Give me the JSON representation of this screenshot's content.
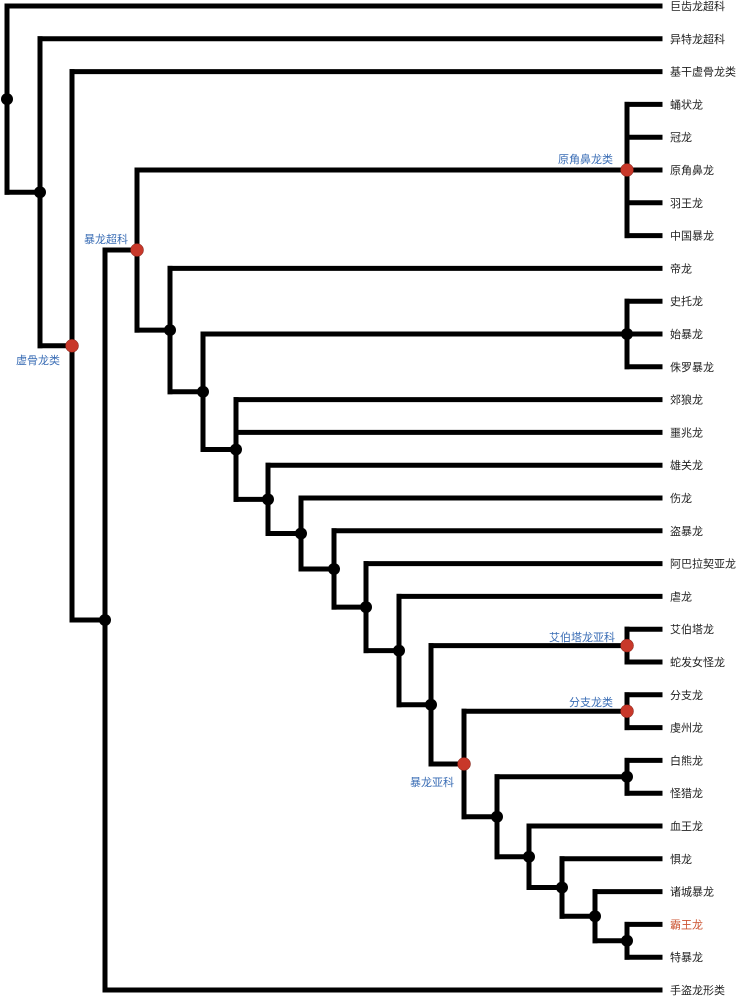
{
  "colors": {
    "branch": "#000000",
    "leaf_text": "#222222",
    "highlight_leaf": "#cc5533",
    "clade_label": "#3a6db5",
    "named_node": "#c8382a",
    "unnamed_node": "#000000"
  },
  "leaves": [
    "巨齿龙超科",
    "异特龙超科",
    "基干虚骨龙类",
    "蛹状龙",
    "冠龙",
    "原角鼻龙",
    "羽王龙",
    "中国暴龙",
    "帝龙",
    "史托龙",
    "始暴龙",
    "侏罗暴龙",
    "郊狼龙",
    "噩兆龙",
    "雄关龙",
    "伤龙",
    "盗暴龙",
    "阿巴拉契亚龙",
    "虐龙",
    "艾伯塔龙",
    "蛇发女怪龙",
    "分支龙",
    "虔州龙",
    "白熊龙",
    "怪猎龙",
    "血王龙",
    "惧龙",
    "诸城暴龙",
    "霸王龙",
    "特暴龙",
    "手盗龙形类"
  ],
  "highlighted_leaf": "霸王龙",
  "clades": {
    "coelurosauria": "虚骨龙类",
    "tyrannosauroidea": "暴龙超科",
    "proceratosauridae": "原角鼻龙类",
    "albertosaurinae": "艾伯塔龙亚科",
    "alioramini": "分支龙类",
    "tyrannosaurinae": "暴龙亚科"
  }
}
